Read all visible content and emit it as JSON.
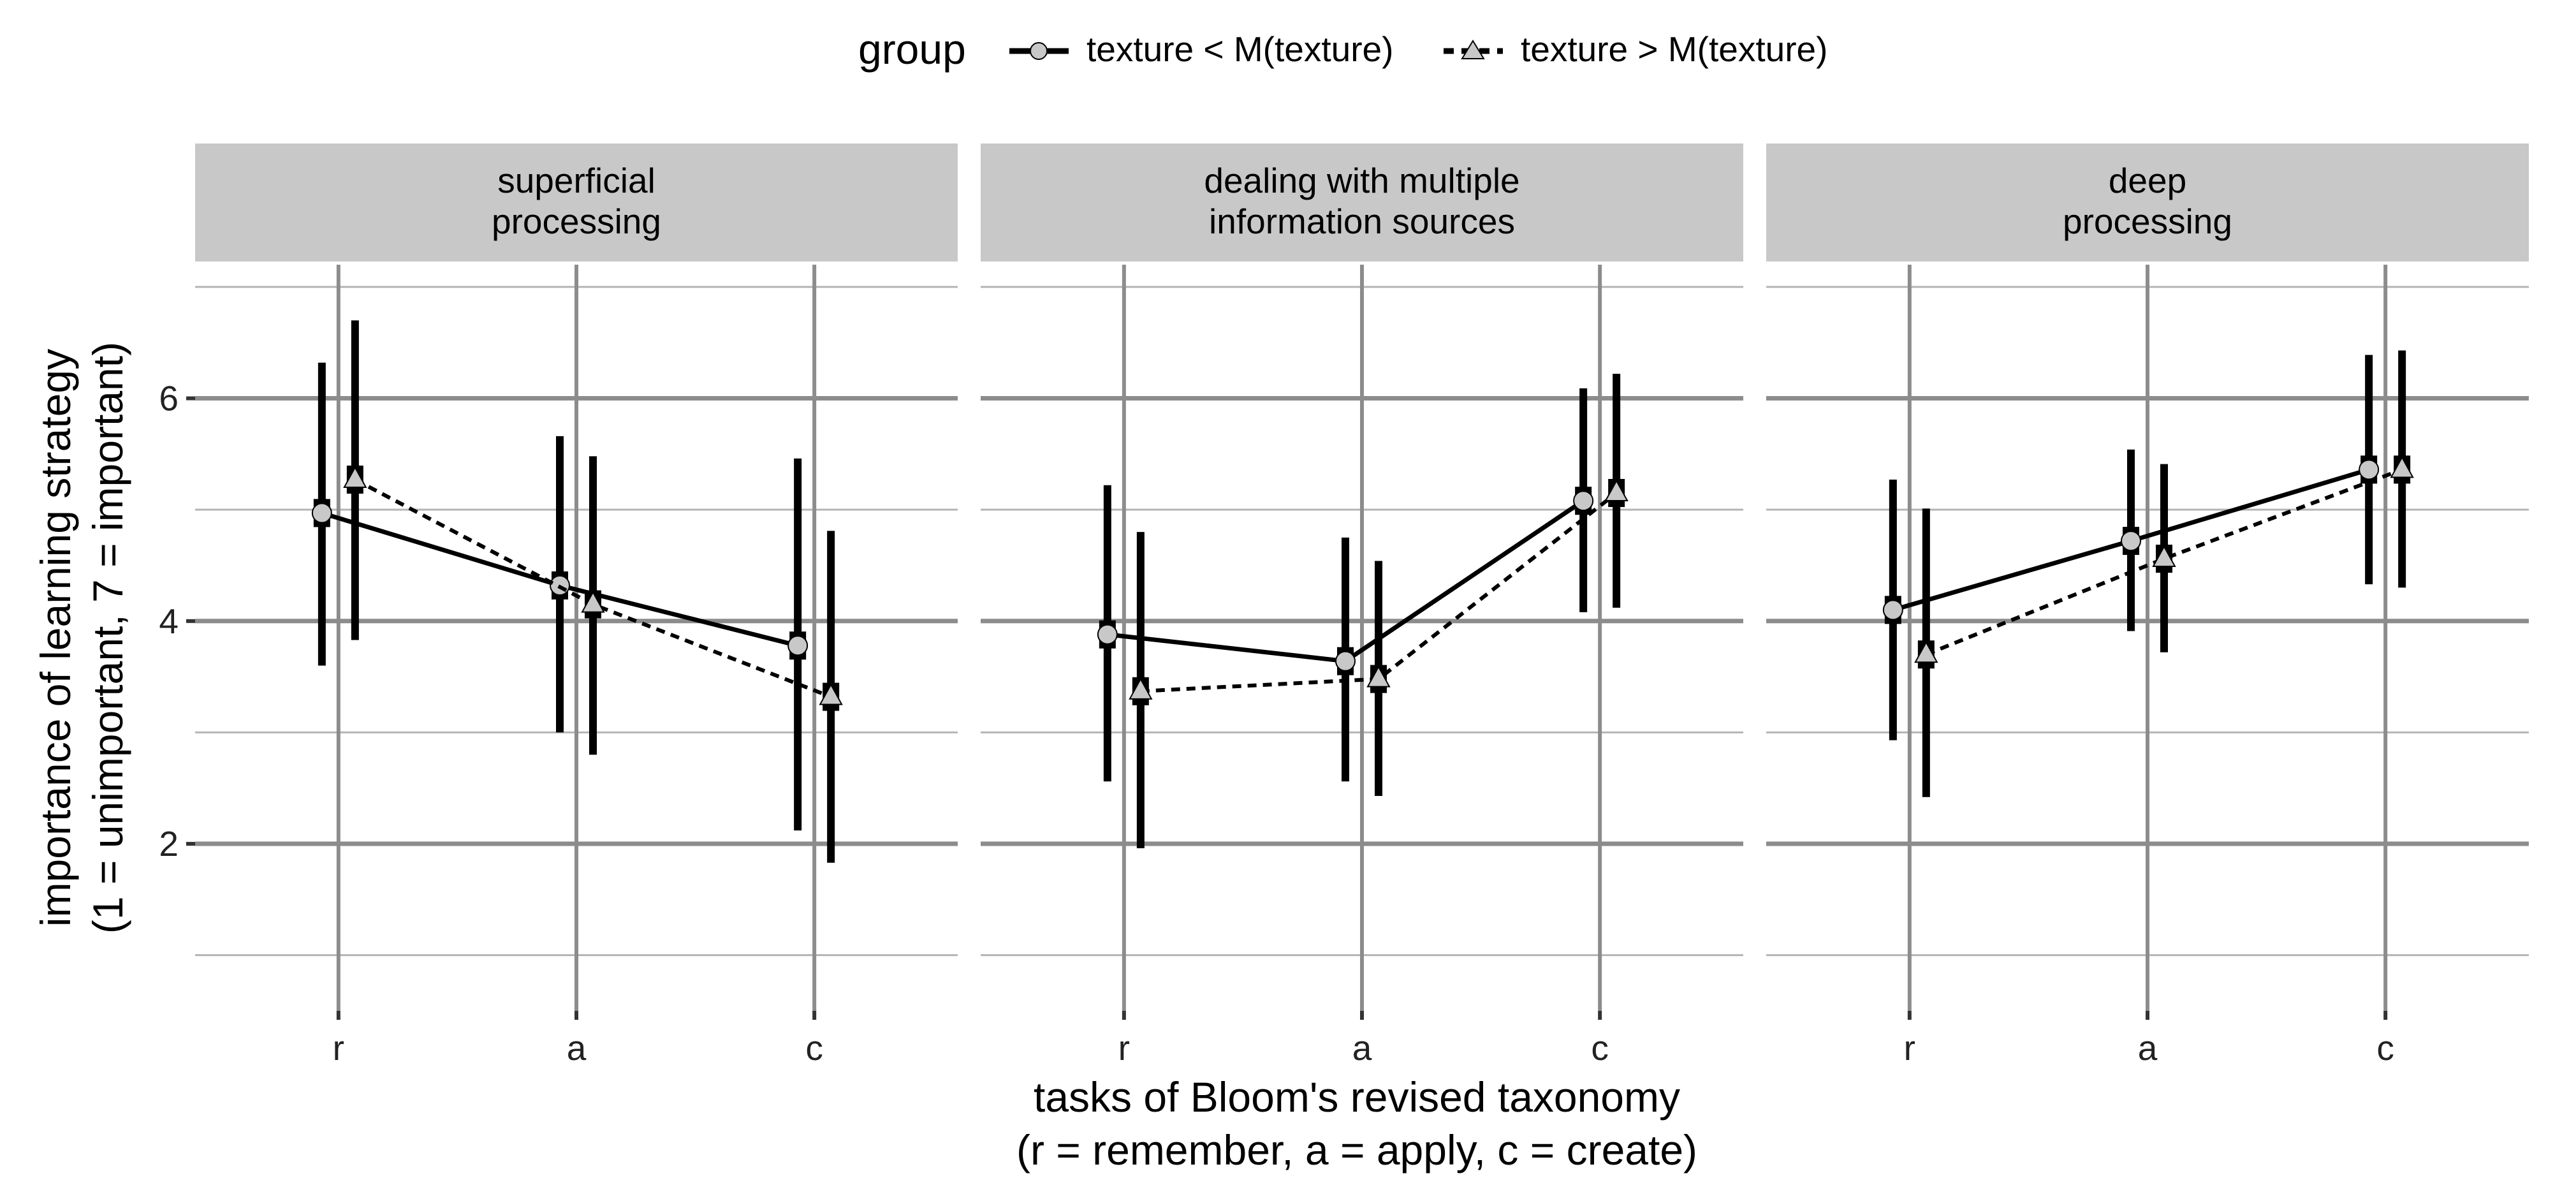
{
  "chart_data": {
    "type": "line",
    "legend": {
      "title": "group",
      "placement": "top",
      "entries": [
        "texture < M(texture)",
        "texture > M(texture)"
      ]
    },
    "xlabel": [
      "tasks of Bloom's revised taxonomy",
      "(r = remember, a = apply, c = create)"
    ],
    "ylabel": [
      "importance of learning strategy",
      "(1 = unimportant, 7 = important)"
    ],
    "categories": [
      "r",
      "a",
      "c"
    ],
    "ylim": [
      0.5,
      7.2
    ],
    "yticks": [
      2,
      4,
      6
    ],
    "grid": true,
    "colors": {
      "panel_strip": "#c8c8c8",
      "major_grid": "#8c8c8c",
      "minor_grid": "#b4b4b4",
      "marker_fill": "#c8c8c8",
      "line": "#000000"
    },
    "panels": [
      {
        "title_lines": [
          "superficial",
          "processing"
        ],
        "series": [
          {
            "name": "texture < M(texture)",
            "linestyle": "solid",
            "marker": "circle",
            "values": [
              4.97,
              4.32,
              3.78
            ],
            "lower": [
              3.6,
              3.0,
              2.12
            ],
            "upper": [
              6.32,
              5.66,
              5.46
            ]
          },
          {
            "name": "texture > M(texture)",
            "linestyle": "dashed",
            "marker": "triangle",
            "values": [
              5.27,
              4.15,
              3.32
            ],
            "lower": [
              3.83,
              2.8,
              1.83
            ],
            "upper": [
              6.7,
              5.48,
              4.81
            ]
          }
        ]
      },
      {
        "title_lines": [
          "dealing with multiple",
          "information sources"
        ],
        "series": [
          {
            "name": "texture < M(texture)",
            "linestyle": "solid",
            "marker": "circle",
            "values": [
              3.88,
              3.64,
              5.08
            ],
            "lower": [
              2.56,
              2.56,
              4.08
            ],
            "upper": [
              5.22,
              4.75,
              6.09
            ]
          },
          {
            "name": "texture > M(texture)",
            "linestyle": "dashed",
            "marker": "triangle",
            "values": [
              3.37,
              3.48,
              5.15
            ],
            "lower": [
              1.96,
              2.43,
              4.12
            ],
            "upper": [
              4.8,
              4.54,
              6.22
            ]
          }
        ]
      },
      {
        "title_lines": [
          "deep",
          "processing"
        ],
        "series": [
          {
            "name": "texture < M(texture)",
            "linestyle": "solid",
            "marker": "circle",
            "values": [
              4.1,
              4.72,
              5.36
            ],
            "lower": [
              2.93,
              3.91,
              4.33
            ],
            "upper": [
              5.27,
              5.54,
              6.39
            ]
          },
          {
            "name": "texture > M(texture)",
            "linestyle": "dashed",
            "marker": "triangle",
            "values": [
              3.7,
              4.56,
              5.36
            ],
            "lower": [
              2.42,
              3.72,
              4.3
            ],
            "upper": [
              5.01,
              5.41,
              6.43
            ]
          }
        ]
      }
    ]
  }
}
